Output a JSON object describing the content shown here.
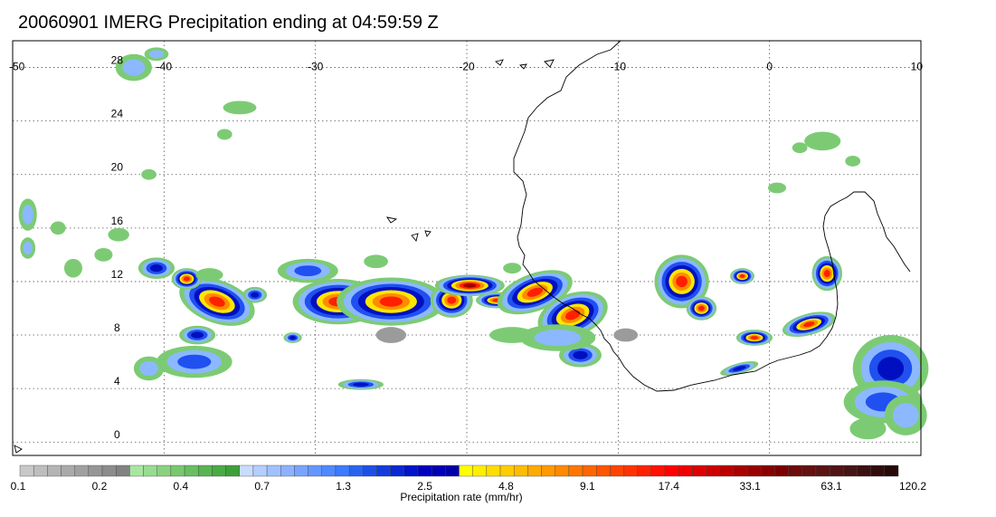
{
  "title": "20060901 IMERG Precipitation ending at 04:59:59 Z",
  "map": {
    "lon_range": [
      -50,
      10
    ],
    "lat_range": [
      -1,
      30
    ],
    "lon_ticks": [
      "-50",
      "-40",
      "-30",
      "-20",
      "-10",
      "0",
      "10"
    ],
    "lat_ticks": [
      "28",
      "24",
      "20",
      "16",
      "12",
      "8",
      "4",
      "0"
    ],
    "grid": "dotted"
  },
  "colorbar": {
    "label": "Precipitation rate (mm/hr)",
    "tick_labels": [
      "0.1",
      "0.2",
      "0.4",
      "0.7",
      "1.3",
      "2.5",
      "4.8",
      "9.1",
      "17.4",
      "33.1",
      "63.1",
      "120.2"
    ],
    "colors": [
      "#c8c8c8",
      "#bebebe",
      "#b4b4b4",
      "#aaaaaa",
      "#a0a0a0",
      "#969696",
      "#8c8c8c",
      "#828282",
      "#a8e6a0",
      "#98dc90",
      "#88d280",
      "#78c870",
      "#68be60",
      "#58b450",
      "#4aaa44",
      "#3ea03a",
      "#c8dcff",
      "#b4ceff",
      "#a0c0ff",
      "#8cb2ff",
      "#78a4ff",
      "#6496ff",
      "#5088ff",
      "#3c7aff",
      "#2864f0",
      "#1e50e6",
      "#143cdc",
      "#0a28d2",
      "#0014c8",
      "#0000be",
      "#0000b4",
      "#0000aa",
      "#ffff00",
      "#ffee00",
      "#ffdd00",
      "#ffcc00",
      "#ffbb00",
      "#ffaa00",
      "#ff9900",
      "#ff8800",
      "#ff7700",
      "#ff6600",
      "#ff5500",
      "#ff4400",
      "#ff3300",
      "#ff2200",
      "#ff1100",
      "#ff0000",
      "#ee0000",
      "#dd0000",
      "#cc0000",
      "#bb0000",
      "#aa0000",
      "#990000",
      "#880000",
      "#7a0000",
      "#6e0a0a",
      "#641010",
      "#5a1212",
      "#501414",
      "#461414",
      "#3c1010",
      "#320c0c",
      "#280808"
    ]
  },
  "precip_colors": {
    "gray": "#9b9b9b",
    "green": "#7ccb74",
    "lightblue": "#8cb8ff",
    "blue": "#2050f0",
    "navy": "#0010c0",
    "yellow": "#ffe600",
    "orange": "#ff8c00",
    "red": "#ff2000",
    "darkred": "#a00000"
  }
}
